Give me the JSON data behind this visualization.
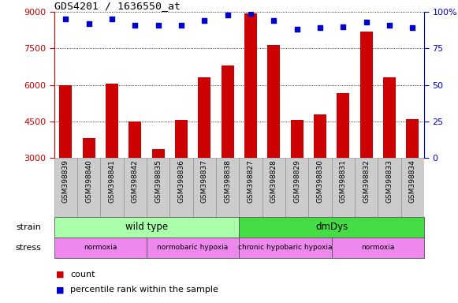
{
  "title": "GDS4201 / 1636550_at",
  "samples": [
    "GSM398839",
    "GSM398840",
    "GSM398841",
    "GSM398842",
    "GSM398835",
    "GSM398836",
    "GSM398837",
    "GSM398838",
    "GSM398827",
    "GSM398828",
    "GSM398829",
    "GSM398830",
    "GSM398831",
    "GSM398832",
    "GSM398833",
    "GSM398834"
  ],
  "counts": [
    6000,
    3800,
    6050,
    4500,
    3350,
    4550,
    6300,
    6800,
    8950,
    7650,
    4550,
    4800,
    5650,
    8200,
    6300,
    4600
  ],
  "percentile_ranks": [
    95,
    92,
    95,
    91,
    91,
    91,
    94,
    98,
    99,
    94,
    88,
    89,
    90,
    93,
    91,
    89
  ],
  "bar_color": "#cc0000",
  "dot_color": "#0000cc",
  "ylim_left": [
    3000,
    9000
  ],
  "ylim_right": [
    0,
    100
  ],
  "yticks_left": [
    3000,
    4500,
    6000,
    7500,
    9000
  ],
  "yticks_right": [
    0,
    25,
    50,
    75,
    100
  ],
  "ytick_right_labels": [
    "0",
    "25",
    "50",
    "75",
    "100%"
  ],
  "strain_groups": [
    {
      "text": "wild type",
      "start": 0,
      "end": 8,
      "color": "#aaffaa"
    },
    {
      "text": "dmDys",
      "start": 8,
      "end": 16,
      "color": "#44dd44"
    }
  ],
  "stress_groups": [
    {
      "text": "normoxia",
      "start": 0,
      "end": 4,
      "color": "#ee88ee"
    },
    {
      "text": "normobaric hypoxia",
      "start": 4,
      "end": 8,
      "color": "#ee88ee"
    },
    {
      "text": "chronic hypobaric hypoxia",
      "start": 8,
      "end": 12,
      "color": "#ee88ee"
    },
    {
      "text": "normoxia",
      "start": 12,
      "end": 16,
      "color": "#ee88ee"
    }
  ],
  "legend": [
    {
      "label": "count",
      "color": "#cc0000"
    },
    {
      "label": "percentile rank within the sample",
      "color": "#0000cc"
    }
  ]
}
